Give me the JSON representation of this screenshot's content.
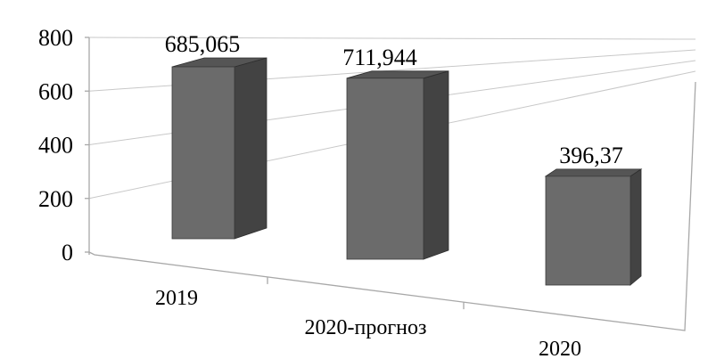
{
  "chart_data": {
    "type": "bar",
    "categories": [
      "2019",
      "2020-прогноз",
      "2020"
    ],
    "values": [
      685.065,
      711.944,
      396.37
    ],
    "data_labels": [
      "685,065",
      "711,944",
      "396,37"
    ],
    "y_ticks": [
      "0",
      "200",
      "400",
      "600",
      "800"
    ],
    "ylim": [
      0,
      800
    ],
    "title": "",
    "xlabel": "",
    "ylabel": "",
    "grid": true,
    "legend": "none",
    "style": "3d-column",
    "colors": {
      "bar_front": "#6b6b6b",
      "bar_side": "#434343",
      "bar_top": "#555555",
      "gridline": "#c8c8c8"
    }
  }
}
